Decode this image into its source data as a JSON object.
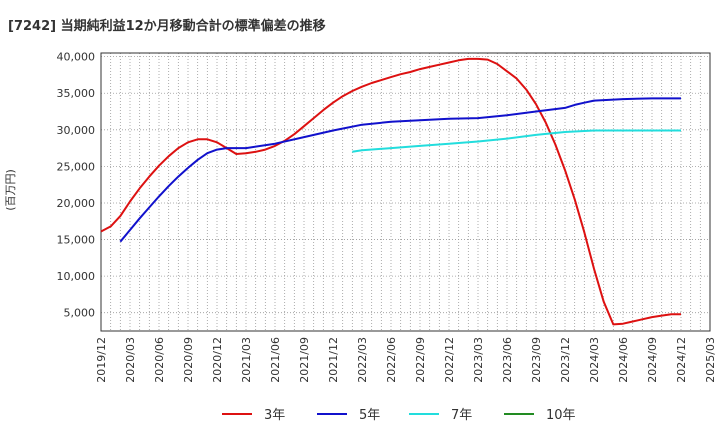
{
  "chart_data": {
    "type": "line",
    "title": "[7242]  当期純利益12か月移動合計の標準偏差の推移",
    "ylabel": "(百万円)",
    "xlabel": "",
    "ylim": [
      2500,
      40500
    ],
    "yticks": [
      5000,
      10000,
      15000,
      20000,
      25000,
      30000,
      35000,
      40000
    ],
    "ytick_labels": [
      "5,000",
      "10,000",
      "15,000",
      "20,000",
      "25,000",
      "30,000",
      "35,000",
      "40,000"
    ],
    "xtick_labels": [
      "2019/12",
      "2020/03",
      "2020/06",
      "2020/09",
      "2020/12",
      "2021/03",
      "2021/06",
      "2021/09",
      "2021/12",
      "2022/03",
      "2022/06",
      "2022/09",
      "2022/12",
      "2023/03",
      "2023/06",
      "2023/09",
      "2023/12",
      "2024/03",
      "2024/06",
      "2024/09",
      "2024/12",
      "2025/03"
    ],
    "grid": true,
    "legend_position": "bottom",
    "series": [
      {
        "name": "3年",
        "color": "#dd1111",
        "x": [
          "2019/12",
          "2020/01",
          "2020/02",
          "2020/03",
          "2020/04",
          "2020/05",
          "2020/06",
          "2020/07",
          "2020/08",
          "2020/09",
          "2020/10",
          "2020/11",
          "2020/12",
          "2021/01",
          "2021/02",
          "2021/03",
          "2021/04",
          "2021/05",
          "2021/06",
          "2021/07",
          "2021/08",
          "2021/09",
          "2021/10",
          "2021/11",
          "2021/12",
          "2022/01",
          "2022/02",
          "2022/03",
          "2022/04",
          "2022/05",
          "2022/06",
          "2022/07",
          "2022/08",
          "2022/09",
          "2022/10",
          "2022/11",
          "2022/12",
          "2023/01",
          "2023/02",
          "2023/03",
          "2023/04",
          "2023/05",
          "2023/06",
          "2023/07",
          "2023/08",
          "2023/09",
          "2023/10",
          "2023/11",
          "2023/12",
          "2024/01",
          "2024/02",
          "2024/03",
          "2024/04",
          "2024/05",
          "2024/06",
          "2024/07",
          "2024/08",
          "2024/09",
          "2024/10",
          "2024/11",
          "2024/12"
        ],
        "values": [
          16100,
          16800,
          18200,
          20200,
          22000,
          23600,
          25100,
          26400,
          27500,
          28300,
          28700,
          28700,
          28300,
          27500,
          26700,
          26800,
          27000,
          27300,
          27800,
          28500,
          29400,
          30500,
          31600,
          32700,
          33700,
          34600,
          35300,
          35900,
          36400,
          36800,
          37200,
          37600,
          37900,
          38300,
          38600,
          38900,
          39200,
          39500,
          39700,
          39700,
          39600,
          39000,
          38000,
          37000,
          35500,
          33500,
          31000,
          28000,
          24500,
          20500,
          16000,
          11000,
          6500,
          3400,
          3500,
          3800,
          4100,
          4400,
          4600,
          4800,
          4800
        ]
      },
      {
        "name": "5年",
        "color": "#1111cc",
        "x": [
          "2020/02",
          "2020/03",
          "2020/04",
          "2020/05",
          "2020/06",
          "2020/07",
          "2020/08",
          "2020/09",
          "2020/10",
          "2020/11",
          "2020/12",
          "2021/01",
          "2021/02",
          "2021/03",
          "2021/06",
          "2021/09",
          "2021/12",
          "2022/03",
          "2022/06",
          "2022/09",
          "2022/12",
          "2023/03",
          "2023/06",
          "2023/09",
          "2023/12",
          "2024/01",
          "2024/02",
          "2024/03",
          "2024/06",
          "2024/09",
          "2024/12"
        ],
        "values": [
          14700,
          16300,
          17900,
          19400,
          20900,
          22300,
          23600,
          24800,
          25900,
          26800,
          27300,
          27500,
          27500,
          27500,
          28100,
          29000,
          29900,
          30700,
          31100,
          31300,
          31500,
          31600,
          32000,
          32500,
          33000,
          33400,
          33700,
          34000,
          34200,
          34300,
          34300
        ]
      },
      {
        "name": "7年",
        "color": "#22dddd",
        "x": [
          "2022/02",
          "2022/03",
          "2022/06",
          "2022/09",
          "2022/12",
          "2023/03",
          "2023/06",
          "2023/09",
          "2023/12",
          "2024/03",
          "2024/06",
          "2024/09",
          "2024/12"
        ],
        "values": [
          27000,
          27200,
          27500,
          27800,
          28100,
          28400,
          28800,
          29300,
          29700,
          29900,
          29900,
          29900,
          29900
        ]
      },
      {
        "name": "10年",
        "color": "#228b22",
        "x": [],
        "values": []
      }
    ]
  }
}
